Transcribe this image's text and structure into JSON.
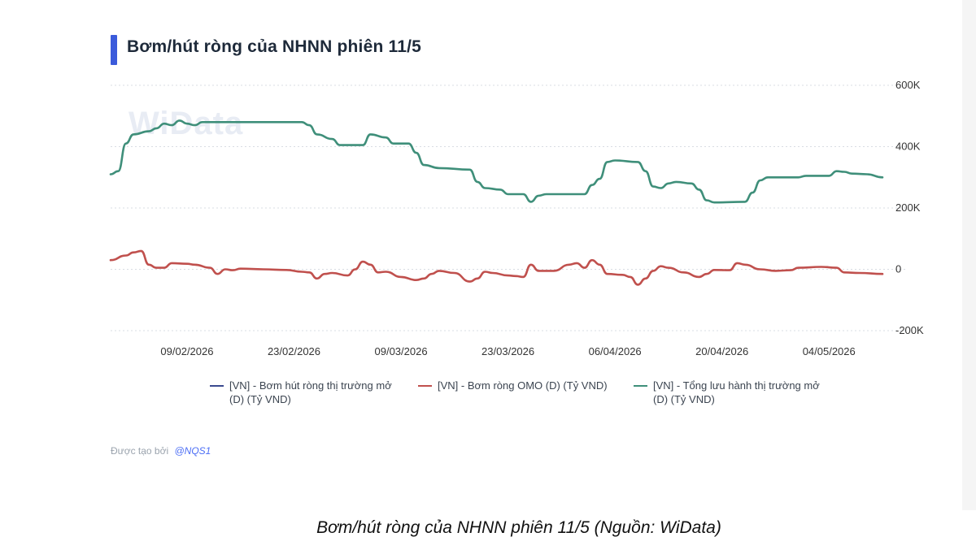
{
  "title": "Bơm/hút ròng của NHNN phiên 11/5",
  "watermark": "WiData",
  "caption": "Bơm/hút ròng của NHNN phiên 11/5 (Nguồn: WiData)",
  "credit": {
    "prefix": "Được tạo bởi",
    "handle": "@NQS1"
  },
  "colors": {
    "accent": "#3b5bdb",
    "omo": "#c0504d",
    "total": "#3f8f7a",
    "net": "#3b4a8f"
  },
  "chart_data": {
    "type": "line",
    "xlabel": "",
    "ylabel": "",
    "ylim": [
      -200000,
      600000
    ],
    "y_ticks": [
      600000,
      400000,
      200000,
      0,
      -200000
    ],
    "y_tick_labels": [
      "600K",
      "400K",
      "200K",
      "0",
      "-200K"
    ],
    "x_range": [
      "2026-01-30",
      "2026-05-11"
    ],
    "x_ticks": [
      "2026-02-09",
      "2026-02-23",
      "2026-03-09",
      "2026-03-23",
      "2026-04-06",
      "2026-04-20",
      "2026-05-04"
    ],
    "x_tick_labels": [
      "09/02/2026",
      "23/02/2026",
      "09/03/2026",
      "23/03/2026",
      "06/04/2026",
      "20/04/2026",
      "04/05/2026"
    ],
    "grid": true,
    "legend_position": "bottom",
    "series": [
      {
        "name": "[VN] - Bơm hút ròng thị trường mở (D) (Tỷ VND)",
        "color": "#3b4a8f",
        "values": []
      },
      {
        "name": "[VN] - Bơm ròng OMO (D) (Tỷ VND)",
        "color": "#c0504d",
        "points": [
          [
            "2026-01-30",
            30000
          ],
          [
            "2026-02-01",
            45000
          ],
          [
            "2026-02-02",
            55000
          ],
          [
            "2026-02-03",
            60000
          ],
          [
            "2026-02-04",
            15000
          ],
          [
            "2026-02-05",
            5000
          ],
          [
            "2026-02-06",
            5000
          ],
          [
            "2026-02-07",
            20000
          ],
          [
            "2026-02-09",
            18000
          ],
          [
            "2026-02-10",
            15000
          ],
          [
            "2026-02-12",
            5000
          ],
          [
            "2026-02-13",
            -15000
          ],
          [
            "2026-02-14",
            0
          ],
          [
            "2026-02-15",
            -3000
          ],
          [
            "2026-02-16",
            2000
          ],
          [
            "2026-02-19",
            0
          ],
          [
            "2026-02-22",
            -2000
          ],
          [
            "2026-02-24",
            -8000
          ],
          [
            "2026-02-25",
            -10000
          ],
          [
            "2026-02-26",
            -30000
          ],
          [
            "2026-02-27",
            -15000
          ],
          [
            "2026-02-28",
            -12000
          ],
          [
            "2026-03-02",
            -20000
          ],
          [
            "2026-03-03",
            0
          ],
          [
            "2026-03-04",
            25000
          ],
          [
            "2026-03-05",
            15000
          ],
          [
            "2026-03-06",
            -10000
          ],
          [
            "2026-03-07",
            -8000
          ],
          [
            "2026-03-09",
            -25000
          ],
          [
            "2026-03-11",
            -35000
          ],
          [
            "2026-03-12",
            -30000
          ],
          [
            "2026-03-13",
            -15000
          ],
          [
            "2026-03-14",
            -5000
          ],
          [
            "2026-03-16",
            -12000
          ],
          [
            "2026-03-18",
            -40000
          ],
          [
            "2026-03-19",
            -30000
          ],
          [
            "2026-03-20",
            -8000
          ],
          [
            "2026-03-21",
            -12000
          ],
          [
            "2026-03-23",
            -20000
          ],
          [
            "2026-03-24",
            -22000
          ],
          [
            "2026-03-25",
            -25000
          ],
          [
            "2026-03-26",
            15000
          ],
          [
            "2026-03-27",
            -5000
          ],
          [
            "2026-03-29",
            -5000
          ],
          [
            "2026-03-31",
            15000
          ],
          [
            "2026-04-01",
            20000
          ],
          [
            "2026-04-02",
            5000
          ],
          [
            "2026-04-03",
            30000
          ],
          [
            "2026-04-04",
            15000
          ],
          [
            "2026-04-05",
            -15000
          ],
          [
            "2026-04-07",
            -18000
          ],
          [
            "2026-04-08",
            -25000
          ],
          [
            "2026-04-09",
            -50000
          ],
          [
            "2026-04-10",
            -30000
          ],
          [
            "2026-04-11",
            -5000
          ],
          [
            "2026-04-12",
            10000
          ],
          [
            "2026-04-13",
            5000
          ],
          [
            "2026-04-15",
            -10000
          ],
          [
            "2026-04-17",
            -25000
          ],
          [
            "2026-04-18",
            -15000
          ],
          [
            "2026-04-19",
            -2000
          ],
          [
            "2026-04-21",
            -3000
          ],
          [
            "2026-04-22",
            20000
          ],
          [
            "2026-04-23",
            15000
          ],
          [
            "2026-04-25",
            0
          ],
          [
            "2026-04-27",
            -5000
          ],
          [
            "2026-04-29",
            -3000
          ],
          [
            "2026-04-30",
            5000
          ],
          [
            "2026-05-03",
            8000
          ],
          [
            "2026-05-05",
            5000
          ],
          [
            "2026-05-06",
            -10000
          ],
          [
            "2026-05-08",
            -12000
          ],
          [
            "2026-05-11",
            -15000
          ]
        ]
      },
      {
        "name": "[VN] - Tổng lưu hành thị trường mở (D) (Tỷ VND)",
        "color": "#3f8f7a",
        "points": [
          [
            "2026-01-30",
            310000
          ],
          [
            "2026-01-31",
            320000
          ],
          [
            "2026-02-01",
            410000
          ],
          [
            "2026-02-02",
            440000
          ],
          [
            "2026-02-04",
            450000
          ],
          [
            "2026-02-05",
            460000
          ],
          [
            "2026-02-06",
            475000
          ],
          [
            "2026-02-07",
            470000
          ],
          [
            "2026-02-08",
            485000
          ],
          [
            "2026-02-09",
            475000
          ],
          [
            "2026-02-10",
            470000
          ],
          [
            "2026-02-11",
            480000
          ],
          [
            "2026-02-15",
            480000
          ],
          [
            "2026-02-19",
            480000
          ],
          [
            "2026-02-24",
            480000
          ],
          [
            "2026-02-25",
            470000
          ],
          [
            "2026-02-26",
            440000
          ],
          [
            "2026-02-28",
            425000
          ],
          [
            "2026-03-01",
            405000
          ],
          [
            "2026-03-04",
            405000
          ],
          [
            "2026-03-05",
            440000
          ],
          [
            "2026-03-07",
            430000
          ],
          [
            "2026-03-08",
            410000
          ],
          [
            "2026-03-10",
            410000
          ],
          [
            "2026-03-11",
            380000
          ],
          [
            "2026-03-12",
            340000
          ],
          [
            "2026-03-14",
            330000
          ],
          [
            "2026-03-18",
            325000
          ],
          [
            "2026-03-19",
            285000
          ],
          [
            "2026-03-20",
            265000
          ],
          [
            "2026-03-22",
            260000
          ],
          [
            "2026-03-23",
            245000
          ],
          [
            "2026-03-25",
            245000
          ],
          [
            "2026-03-26",
            220000
          ],
          [
            "2026-03-27",
            240000
          ],
          [
            "2026-03-28",
            245000
          ],
          [
            "2026-03-31",
            245000
          ],
          [
            "2026-04-02",
            245000
          ],
          [
            "2026-04-03",
            275000
          ],
          [
            "2026-04-04",
            295000
          ],
          [
            "2026-04-05",
            350000
          ],
          [
            "2026-04-06",
            355000
          ],
          [
            "2026-04-09",
            350000
          ],
          [
            "2026-04-10",
            320000
          ],
          [
            "2026-04-11",
            270000
          ],
          [
            "2026-04-12",
            265000
          ],
          [
            "2026-04-13",
            280000
          ],
          [
            "2026-04-14",
            285000
          ],
          [
            "2026-04-16",
            280000
          ],
          [
            "2026-04-17",
            260000
          ],
          [
            "2026-04-18",
            225000
          ],
          [
            "2026-04-19",
            218000
          ],
          [
            "2026-04-23",
            220000
          ],
          [
            "2026-04-24",
            250000
          ],
          [
            "2026-04-25",
            290000
          ],
          [
            "2026-04-26",
            300000
          ],
          [
            "2026-04-30",
            300000
          ],
          [
            "2026-05-01",
            305000
          ],
          [
            "2026-05-04",
            305000
          ],
          [
            "2026-05-05",
            320000
          ],
          [
            "2026-05-06",
            318000
          ],
          [
            "2026-05-07",
            312000
          ],
          [
            "2026-05-09",
            310000
          ],
          [
            "2026-05-11",
            300000
          ]
        ]
      }
    ]
  }
}
